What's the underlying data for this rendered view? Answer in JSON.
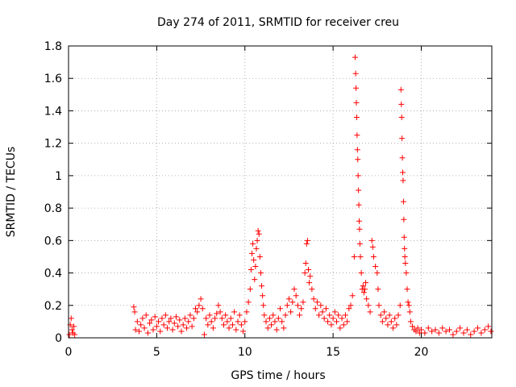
{
  "chart_data": {
    "type": "scatter",
    "title": "Day 274 of 2011, SRMTID for receiver creu",
    "xlabel": "GPS time / hours",
    "ylabel": "SRMTID / TECUs",
    "xlim": [
      0,
      24
    ],
    "ylim": [
      0,
      1.8
    ],
    "xticks": [
      0,
      5,
      10,
      15,
      20
    ],
    "xtick_labels": [
      "0",
      "5",
      "10",
      "15",
      "20"
    ],
    "yticks": [
      0,
      0.2,
      0.4,
      0.6,
      0.8,
      1,
      1.2,
      1.4,
      1.6,
      1.8
    ],
    "ytick_labels": [
      "0",
      "0.2",
      "0.4",
      "0.6",
      "0.8",
      "1",
      "1.2",
      "1.4",
      "1.6",
      "1.8"
    ],
    "grid": true,
    "marker": "+",
    "color": "#ff0000",
    "series": [
      {
        "name": "SRMTID",
        "points": [
          [
            0.05,
            0.02
          ],
          [
            0.1,
            0.08
          ],
          [
            0.15,
            0.12
          ],
          [
            0.2,
            0.05
          ],
          [
            0.25,
            0.03
          ],
          [
            0.3,
            0.07
          ],
          [
            0.35,
            0.02
          ],
          [
            3.7,
            0.19
          ],
          [
            3.75,
            0.16
          ],
          [
            3.8,
            0.05
          ],
          [
            3.9,
            0.1
          ],
          [
            4.0,
            0.04
          ],
          [
            4.1,
            0.08
          ],
          [
            4.2,
            0.12
          ],
          [
            4.3,
            0.06
          ],
          [
            4.4,
            0.14
          ],
          [
            4.5,
            0.03
          ],
          [
            4.6,
            0.09
          ],
          [
            4.7,
            0.11
          ],
          [
            4.8,
            0.05
          ],
          [
            4.9,
            0.13
          ],
          [
            5.0,
            0.07
          ],
          [
            5.1,
            0.1
          ],
          [
            5.2,
            0.04
          ],
          [
            5.3,
            0.12
          ],
          [
            5.4,
            0.08
          ],
          [
            5.5,
            0.14
          ],
          [
            5.6,
            0.06
          ],
          [
            5.7,
            0.1
          ],
          [
            5.8,
            0.12
          ],
          [
            5.9,
            0.05
          ],
          [
            6.0,
            0.09
          ],
          [
            6.1,
            0.13
          ],
          [
            6.2,
            0.07
          ],
          [
            6.3,
            0.11
          ],
          [
            6.4,
            0.04
          ],
          [
            6.5,
            0.08
          ],
          [
            6.6,
            0.12
          ],
          [
            6.7,
            0.06
          ],
          [
            6.8,
            0.1
          ],
          [
            6.9,
            0.14
          ],
          [
            7.0,
            0.07
          ],
          [
            7.1,
            0.12
          ],
          [
            7.2,
            0.18
          ],
          [
            7.3,
            0.16
          ],
          [
            7.4,
            0.2
          ],
          [
            7.5,
            0.24
          ],
          [
            7.6,
            0.18
          ],
          [
            7.7,
            0.02
          ],
          [
            7.8,
            0.12
          ],
          [
            7.9,
            0.08
          ],
          [
            8.0,
            0.14
          ],
          [
            8.1,
            0.1
          ],
          [
            8.2,
            0.06
          ],
          [
            8.3,
            0.12
          ],
          [
            8.4,
            0.15
          ],
          [
            8.5,
            0.2
          ],
          [
            8.6,
            0.16
          ],
          [
            8.7,
            0.12
          ],
          [
            8.8,
            0.08
          ],
          [
            8.9,
            0.14
          ],
          [
            9.0,
            0.1
          ],
          [
            9.1,
            0.06
          ],
          [
            9.2,
            0.12
          ],
          [
            9.3,
            0.08
          ],
          [
            9.4,
            0.16
          ],
          [
            9.5,
            0.05
          ],
          [
            9.6,
            0.1
          ],
          [
            9.7,
            0.14
          ],
          [
            9.8,
            0.08
          ],
          [
            9.9,
            0.04
          ],
          [
            10.0,
            0.1
          ],
          [
            10.1,
            0.16
          ],
          [
            10.2,
            0.22
          ],
          [
            10.3,
            0.3
          ],
          [
            10.35,
            0.42
          ],
          [
            10.4,
            0.52
          ],
          [
            10.45,
            0.58
          ],
          [
            10.5,
            0.48
          ],
          [
            10.55,
            0.36
          ],
          [
            10.6,
            0.44
          ],
          [
            10.65,
            0.55
          ],
          [
            10.7,
            0.6
          ],
          [
            10.75,
            0.66
          ],
          [
            10.8,
            0.64
          ],
          [
            10.85,
            0.5
          ],
          [
            10.9,
            0.4
          ],
          [
            10.95,
            0.32
          ],
          [
            11.0,
            0.26
          ],
          [
            11.05,
            0.2
          ],
          [
            11.1,
            0.14
          ],
          [
            11.2,
            0.1
          ],
          [
            11.3,
            0.06
          ],
          [
            11.4,
            0.12
          ],
          [
            11.5,
            0.08
          ],
          [
            11.6,
            0.14
          ],
          [
            11.7,
            0.1
          ],
          [
            11.8,
            0.05
          ],
          [
            11.9,
            0.12
          ],
          [
            12.0,
            0.18
          ],
          [
            12.1,
            0.1
          ],
          [
            12.2,
            0.06
          ],
          [
            12.3,
            0.14
          ],
          [
            12.4,
            0.2
          ],
          [
            12.5,
            0.24
          ],
          [
            12.6,
            0.16
          ],
          [
            12.7,
            0.22
          ],
          [
            12.8,
            0.3
          ],
          [
            12.9,
            0.26
          ],
          [
            13.0,
            0.2
          ],
          [
            13.1,
            0.14
          ],
          [
            13.2,
            0.18
          ],
          [
            13.3,
            0.22
          ],
          [
            13.4,
            0.4
          ],
          [
            13.45,
            0.46
          ],
          [
            13.5,
            0.58
          ],
          [
            13.55,
            0.6
          ],
          [
            13.6,
            0.42
          ],
          [
            13.65,
            0.34
          ],
          [
            13.7,
            0.38
          ],
          [
            13.8,
            0.3
          ],
          [
            13.9,
            0.24
          ],
          [
            14.0,
            0.18
          ],
          [
            14.1,
            0.22
          ],
          [
            14.2,
            0.14
          ],
          [
            14.3,
            0.2
          ],
          [
            14.4,
            0.16
          ],
          [
            14.5,
            0.12
          ],
          [
            14.6,
            0.18
          ],
          [
            14.7,
            0.1
          ],
          [
            14.8,
            0.14
          ],
          [
            14.9,
            0.08
          ],
          [
            15.0,
            0.12
          ],
          [
            15.1,
            0.16
          ],
          [
            15.2,
            0.1
          ],
          [
            15.3,
            0.14
          ],
          [
            15.4,
            0.06
          ],
          [
            15.5,
            0.12
          ],
          [
            15.6,
            0.08
          ],
          [
            15.7,
            0.14
          ],
          [
            15.8,
            0.1
          ],
          [
            15.9,
            0.18
          ],
          [
            16.0,
            0.2
          ],
          [
            16.1,
            0.26
          ],
          [
            16.2,
            0.5
          ],
          [
            16.25,
            1.73
          ],
          [
            16.28,
            1.63
          ],
          [
            16.3,
            1.54
          ],
          [
            16.32,
            1.45
          ],
          [
            16.34,
            1.36
          ],
          [
            16.36,
            1.25
          ],
          [
            16.38,
            1.16
          ],
          [
            16.4,
            1.1
          ],
          [
            16.42,
            1.0
          ],
          [
            16.44,
            0.91
          ],
          [
            16.46,
            0.82
          ],
          [
            16.48,
            0.72
          ],
          [
            16.5,
            0.67
          ],
          [
            16.52,
            0.58
          ],
          [
            16.55,
            0.5
          ],
          [
            16.6,
            0.4
          ],
          [
            16.65,
            0.3
          ],
          [
            16.7,
            0.32
          ],
          [
            16.75,
            0.28
          ],
          [
            16.8,
            0.3
          ],
          [
            16.85,
            0.34
          ],
          [
            16.9,
            0.24
          ],
          [
            17.0,
            0.2
          ],
          [
            17.1,
            0.16
          ],
          [
            17.2,
            0.6
          ],
          [
            17.25,
            0.56
          ],
          [
            17.3,
            0.5
          ],
          [
            17.4,
            0.44
          ],
          [
            17.5,
            0.4
          ],
          [
            17.55,
            0.3
          ],
          [
            17.6,
            0.2
          ],
          [
            17.7,
            0.14
          ],
          [
            17.8,
            0.1
          ],
          [
            17.9,
            0.16
          ],
          [
            18.0,
            0.12
          ],
          [
            18.1,
            0.08
          ],
          [
            18.2,
            0.14
          ],
          [
            18.3,
            0.1
          ],
          [
            18.4,
            0.06
          ],
          [
            18.5,
            0.12
          ],
          [
            18.6,
            0.08
          ],
          [
            18.7,
            0.14
          ],
          [
            18.8,
            0.2
          ],
          [
            18.85,
            1.53
          ],
          [
            18.87,
            1.44
          ],
          [
            18.89,
            1.36
          ],
          [
            18.91,
            1.23
          ],
          [
            18.93,
            1.11
          ],
          [
            18.95,
            1.02
          ],
          [
            18.97,
            0.97
          ],
          [
            18.99,
            0.84
          ],
          [
            19.01,
            0.73
          ],
          [
            19.03,
            0.62
          ],
          [
            19.05,
            0.55
          ],
          [
            19.07,
            0.5
          ],
          [
            19.1,
            0.46
          ],
          [
            19.15,
            0.4
          ],
          [
            19.2,
            0.3
          ],
          [
            19.25,
            0.22
          ],
          [
            19.3,
            0.2
          ],
          [
            19.35,
            0.16
          ],
          [
            19.4,
            0.1
          ],
          [
            19.5,
            0.07
          ],
          [
            19.6,
            0.05
          ],
          [
            19.7,
            0.04
          ],
          [
            19.8,
            0.06
          ],
          [
            19.9,
            0.03
          ],
          [
            20.0,
            0.05
          ],
          [
            20.2,
            0.03
          ],
          [
            20.4,
            0.06
          ],
          [
            20.6,
            0.04
          ],
          [
            20.8,
            0.05
          ],
          [
            21.0,
            0.03
          ],
          [
            21.2,
            0.06
          ],
          [
            21.4,
            0.04
          ],
          [
            21.6,
            0.05
          ],
          [
            21.8,
            0.02
          ],
          [
            22.0,
            0.04
          ],
          [
            22.2,
            0.06
          ],
          [
            22.4,
            0.03
          ],
          [
            22.6,
            0.05
          ],
          [
            22.8,
            0.02
          ],
          [
            23.0,
            0.04
          ],
          [
            23.2,
            0.06
          ],
          [
            23.4,
            0.03
          ],
          [
            23.6,
            0.05
          ],
          [
            23.8,
            0.07
          ],
          [
            23.95,
            0.04
          ]
        ]
      }
    ]
  }
}
